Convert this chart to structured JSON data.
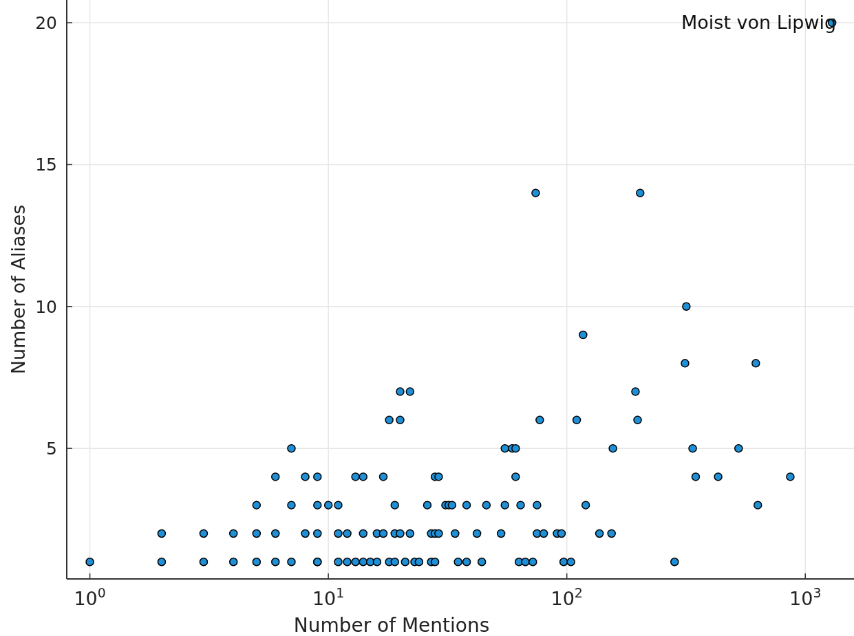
{
  "chart_data": {
    "type": "scatter",
    "xlabel": "Number of Mentions",
    "ylabel": "Number of Aliases",
    "log": "x",
    "grid": true,
    "marker": "circle",
    "xlim": [
      0.8,
      1600
    ],
    "xticks": [
      {
        "value": 1,
        "label": "10$^{0}$"
      },
      {
        "value": 10,
        "label": "10$^{1}$"
      },
      {
        "value": 100,
        "label": "10$^{2}$"
      },
      {
        "value": 1000,
        "label": "10$^{3}$"
      }
    ],
    "ylim": [
      0.4,
      20.8
    ],
    "yticks": [
      5,
      10,
      15,
      20
    ],
    "annotations": [
      {
        "text": "Moist von Lipwig",
        "x": 1295,
        "y": 20
      }
    ],
    "series": [
      {
        "color": "#1f8fd6",
        "x": [
          1,
          2,
          3,
          4,
          5,
          6,
          7,
          9,
          9,
          11,
          12,
          13,
          14,
          15,
          16,
          18,
          19,
          21,
          23,
          24,
          27,
          28,
          35,
          38,
          44,
          63,
          67,
          72,
          97,
          104,
          283,
          2,
          3,
          4,
          5,
          6,
          8,
          9,
          11,
          12,
          14,
          16,
          17,
          19,
          20,
          22,
          27,
          28,
          29,
          34,
          42,
          53,
          75,
          80,
          91,
          95,
          137,
          154,
          5,
          7,
          9,
          10,
          11,
          19,
          26,
          31,
          32,
          33,
          38,
          46,
          55,
          64,
          75,
          120,
          632,
          6,
          8,
          9,
          13,
          14,
          17,
          28,
          29,
          61,
          347,
          431,
          865,
          7,
          55,
          59,
          61,
          156,
          337,
          525,
          18,
          20,
          77,
          110,
          198,
          20,
          22,
          194,
          313,
          620,
          117,
          317,
          74,
          203,
          1295
        ],
        "values": [
          1,
          1,
          1,
          1,
          1,
          1,
          1,
          1,
          1,
          1,
          1,
          1,
          1,
          1,
          1,
          1,
          1,
          1,
          1,
          1,
          1,
          1,
          1,
          1,
          1,
          1,
          1,
          1,
          1,
          1,
          1,
          2,
          2,
          2,
          2,
          2,
          2,
          2,
          2,
          2,
          2,
          2,
          2,
          2,
          2,
          2,
          2,
          2,
          2,
          2,
          2,
          2,
          2,
          2,
          2,
          2,
          2,
          2,
          3,
          3,
          3,
          3,
          3,
          3,
          3,
          3,
          3,
          3,
          3,
          3,
          3,
          3,
          3,
          3,
          3,
          4,
          4,
          4,
          4,
          4,
          4,
          4,
          4,
          4,
          4,
          4,
          4,
          5,
          5,
          5,
          5,
          5,
          5,
          5,
          6,
          6,
          6,
          6,
          6,
          7,
          7,
          7,
          8,
          8,
          9,
          10,
          14,
          14,
          20
        ]
      }
    ]
  }
}
